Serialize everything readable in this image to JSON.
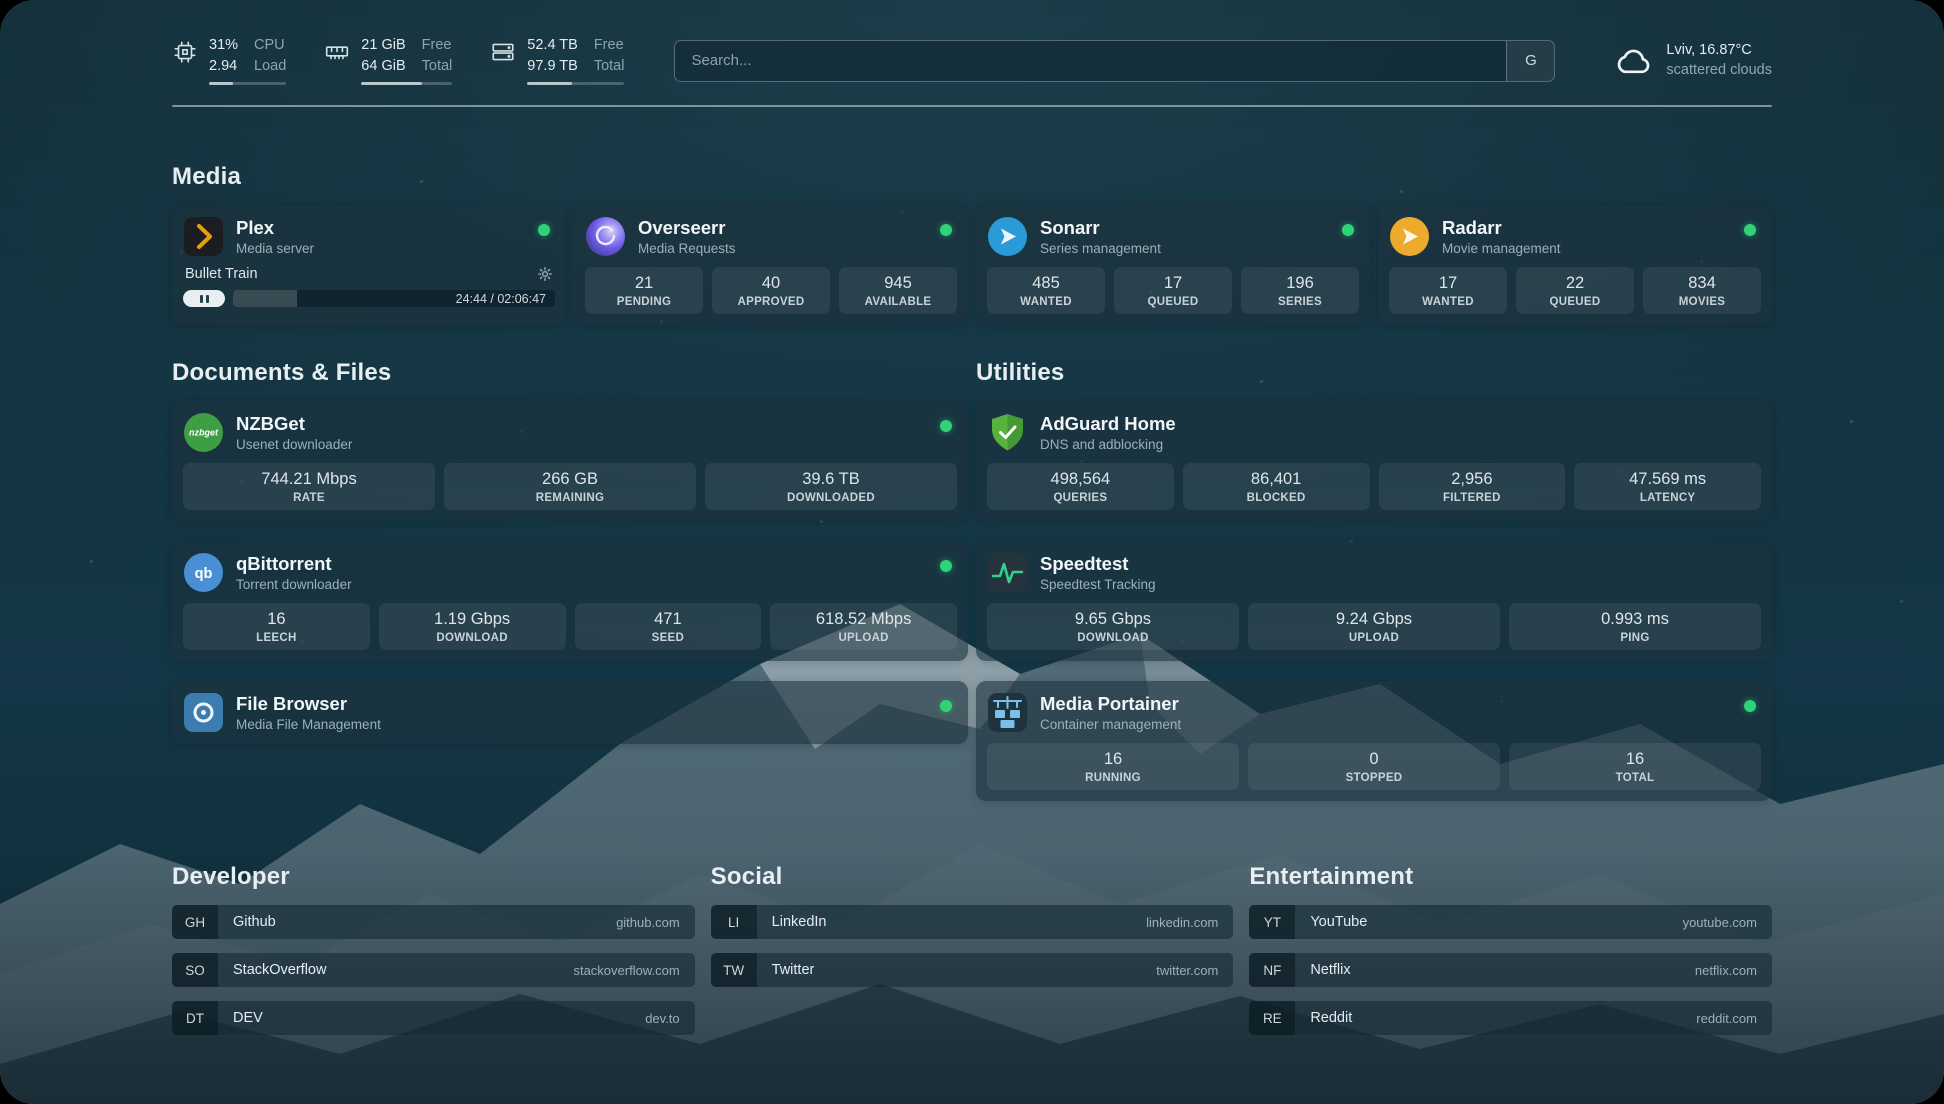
{
  "topbar": {
    "cpu": {
      "value": "31%",
      "load": "2.94",
      "label_value": "CPU",
      "label_load": "Load",
      "percent_used": 31
    },
    "memory": {
      "free": "21 GiB",
      "total": "64 GiB",
      "label_free": "Free",
      "label_total": "Total",
      "percent_used": 67
    },
    "disk": {
      "free": "52.4 TB",
      "total": "97.9 TB",
      "label_free": "Free",
      "label_total": "Total",
      "percent_used": 46
    },
    "search": {
      "placeholder": "Search...",
      "button_label": "G"
    },
    "weather": {
      "location": "Lviv, 16.87°C",
      "condition": "scattered clouds"
    }
  },
  "groups": {
    "media": {
      "title": "Media",
      "services": [
        {
          "name": "Plex",
          "desc": "Media server",
          "online": true,
          "player": {
            "title": "Bullet Train",
            "time": "24:44 / 02:06:47",
            "progress_percent": 20
          }
        },
        {
          "name": "Overseerr",
          "desc": "Media Requests",
          "online": true,
          "stats": [
            {
              "value": "21",
              "label": "PENDING"
            },
            {
              "value": "40",
              "label": "APPROVED"
            },
            {
              "value": "945",
              "label": "AVAILABLE"
            }
          ]
        },
        {
          "name": "Sonarr",
          "desc": "Series management",
          "online": true,
          "stats": [
            {
              "value": "485",
              "label": "WANTED"
            },
            {
              "value": "17",
              "label": "QUEUED"
            },
            {
              "value": "196",
              "label": "SERIES"
            }
          ]
        },
        {
          "name": "Radarr",
          "desc": "Movie management",
          "online": true,
          "stats": [
            {
              "value": "17",
              "label": "WANTED"
            },
            {
              "value": "22",
              "label": "QUEUED"
            },
            {
              "value": "834",
              "label": "MOVIES"
            }
          ]
        }
      ]
    },
    "documents": {
      "title": "Documents & Files",
      "services": [
        {
          "name": "NZBGet",
          "desc": "Usenet downloader",
          "online": true,
          "stats": [
            {
              "value": "744.21 Mbps",
              "label": "RATE"
            },
            {
              "value": "266 GB",
              "label": "REMAINING"
            },
            {
              "value": "39.6 TB",
              "label": "DOWNLOADED"
            }
          ]
        },
        {
          "name": "qBittorrent",
          "desc": "Torrent downloader",
          "online": true,
          "stats": [
            {
              "value": "16",
              "label": "LEECH"
            },
            {
              "value": "1.19 Gbps",
              "label": "DOWNLOAD"
            },
            {
              "value": "471",
              "label": "SEED"
            },
            {
              "value": "618.52 Mbps",
              "label": "UPLOAD"
            }
          ]
        },
        {
          "name": "File Browser",
          "desc": "Media File Management",
          "online": true,
          "stats": []
        }
      ]
    },
    "utilities": {
      "title": "Utilities",
      "services": [
        {
          "name": "AdGuard Home",
          "desc": "DNS and adblocking",
          "stats": [
            {
              "value": "498,564",
              "label": "QUERIES"
            },
            {
              "value": "86,401",
              "label": "BLOCKED"
            },
            {
              "value": "2,956",
              "label": "FILTERED"
            },
            {
              "value": "47.569 ms",
              "label": "LATENCY"
            }
          ]
        },
        {
          "name": "Speedtest",
          "desc": "Speedtest Tracking",
          "stats": [
            {
              "value": "9.65 Gbps",
              "label": "DOWNLOAD"
            },
            {
              "value": "9.24 Gbps",
              "label": "UPLOAD"
            },
            {
              "value": "0.993 ms",
              "label": "PING"
            }
          ]
        },
        {
          "name": "Media Portainer",
          "desc": "Container management",
          "online": true,
          "stats": [
            {
              "value": "16",
              "label": "RUNNING"
            },
            {
              "value": "0",
              "label": "STOPPED"
            },
            {
              "value": "16",
              "label": "TOTAL"
            }
          ]
        }
      ]
    }
  },
  "bookmarks": [
    {
      "title": "Developer",
      "items": [
        {
          "abbr": "GH",
          "name": "Github",
          "url": "github.com"
        },
        {
          "abbr": "SO",
          "name": "StackOverflow",
          "url": "stackoverflow.com"
        },
        {
          "abbr": "DT",
          "name": "DEV",
          "url": "dev.to"
        }
      ]
    },
    {
      "title": "Social",
      "items": [
        {
          "abbr": "LI",
          "name": "LinkedIn",
          "url": "linkedin.com"
        },
        {
          "abbr": "TW",
          "name": "Twitter",
          "url": "twitter.com"
        }
      ]
    },
    {
      "title": "Entertainment",
      "items": [
        {
          "abbr": "YT",
          "name": "YouTube",
          "url": "youtube.com"
        },
        {
          "abbr": "NF",
          "name": "Netflix",
          "url": "netflix.com"
        },
        {
          "abbr": "RE",
          "name": "Reddit",
          "url": "reddit.com"
        }
      ]
    }
  ]
}
